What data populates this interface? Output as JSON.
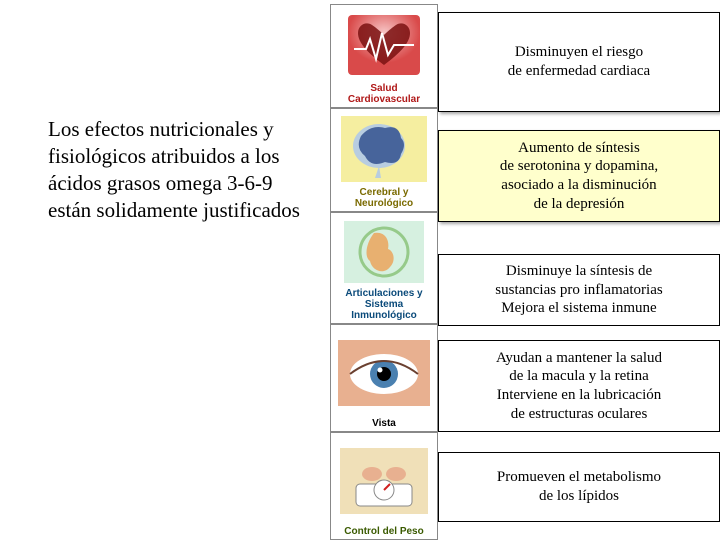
{
  "main_text": "Los efectos nutricionales y fisiológicos atribuidos a los ácidos grasos omega 3-6-9 están solidamente justificados",
  "icons": {
    "cardio": {
      "label": "Salud Cardiovascular",
      "label_color": "#b01818",
      "colors": [
        "#f7c6c6",
        "#d94a4a",
        "#7a1010"
      ]
    },
    "brain": {
      "label": "Cerebral y Neurológico",
      "label_color": "#7a6a00",
      "colors": [
        "#f5eea0",
        "#b8cde0",
        "#2a4a8a"
      ]
    },
    "joint": {
      "label": "Articulaciones y Sistema Inmunológico",
      "label_color": "#0a4a7a",
      "bg": "#d6f0e0",
      "colors": [
        "#e8b070",
        "#6ab050"
      ]
    },
    "eye": {
      "label": "Vista",
      "label_color": "#000000",
      "colors": [
        "#e8b090",
        "#4a80b0",
        "#000000"
      ]
    },
    "weight": {
      "label": "Control del Peso",
      "label_color": "#3a5a00",
      "colors": [
        "#f0e0b8",
        "#ffffff",
        "#d02020"
      ]
    }
  },
  "descriptions": {
    "d1": {
      "text": "Disminuyen el riesgo\nde enfermedad cardiaca",
      "bg": "#ffffff"
    },
    "d2": {
      "text": "Aumento de síntesis\nde serotonina y dopamina,\nasociado a la disminución\nde la depresión",
      "bg": "#ffffcc"
    },
    "d3": {
      "text": "Disminuye la síntesis de\nsustancias pro inflamatorias\nMejora el sistema inmune",
      "bg": "#ffffff"
    },
    "d4": {
      "text": "Ayudan a mantener la salud\nde la macula y la retina\nInterviene en la lubricación\nde estructuras oculares",
      "bg": "#ffffff"
    },
    "d5": {
      "text": "Promueven el metabolismo\nde los lípidos",
      "bg": "#ffffff"
    }
  }
}
